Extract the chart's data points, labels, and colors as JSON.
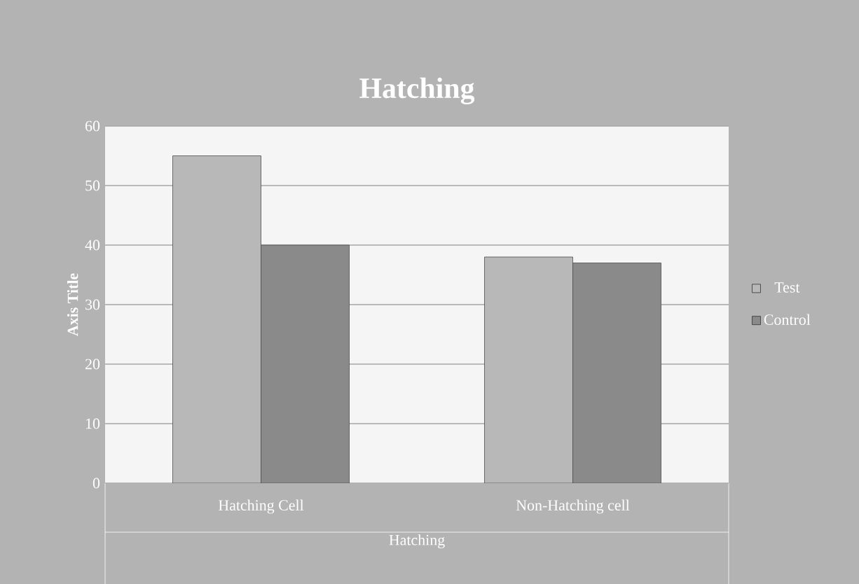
{
  "chart_data": {
    "type": "bar",
    "title": "Hatching",
    "xlabel": "Hatching",
    "ylabel": "Axis Title",
    "categories": [
      "Hatching Cell",
      "Non-Hatching cell"
    ],
    "series": [
      {
        "name": "Test",
        "color": "#b8b8b8",
        "values": [
          55,
          38
        ]
      },
      {
        "name": "Control",
        "color": "#8a8a8a",
        "values": [
          40,
          37
        ]
      }
    ],
    "ylim": [
      0,
      60
    ],
    "yticks": [
      0,
      10,
      20,
      30,
      40,
      50,
      60
    ],
    "grid": "y",
    "legend": "right"
  }
}
